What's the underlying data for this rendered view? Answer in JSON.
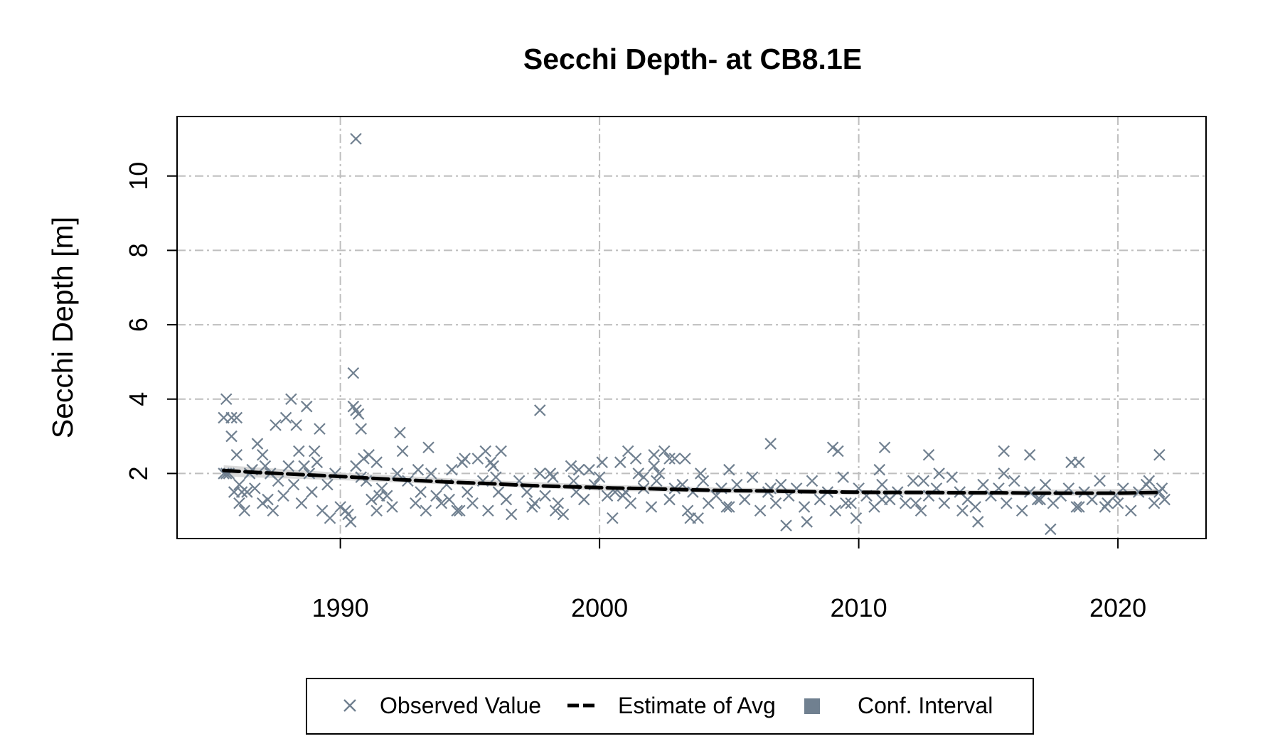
{
  "chart_data": {
    "type": "scatter",
    "title": "Secchi Depth- at CB8.1E",
    "xlabel": "",
    "ylabel": "Secchi Depth [m]",
    "xlim": [
      1983.7,
      2023.4
    ],
    "ylim": [
      0.25,
      11.6
    ],
    "x_ticks": [
      1990,
      2000,
      2010,
      2020
    ],
    "x_tick_labels": [
      "1990",
      "2000",
      "2010",
      "2020"
    ],
    "y_ticks": [
      2,
      4,
      6,
      8,
      10
    ],
    "y_tick_labels": [
      "2",
      "4",
      "6",
      "8",
      "10"
    ],
    "grid": true,
    "legend_position": "bottom",
    "colors": {
      "observed": "#708090",
      "estimate": "#000000",
      "conf_interval": "#708090",
      "band": "#d3d3d3",
      "grid": "#bebebe"
    },
    "legend": [
      {
        "label": "Observed Value",
        "marker": "x"
      },
      {
        "label": "Estimate of Avg",
        "marker": "dashed-line"
      },
      {
        "label": "Conf. Interval",
        "marker": "square"
      }
    ],
    "series": [
      {
        "name": "Observed Value",
        "kind": "points",
        "x": [
          1985.5,
          1985.7,
          1985.5,
          1985.8,
          1986.0,
          1986.2,
          1985.9,
          1986.1,
          1986.3,
          1985.6,
          1986.4,
          1986.6,
          1986.8,
          1987.0,
          1987.2,
          1986.7,
          1987.0,
          1987.4,
          1987.6,
          1987.8,
          1988.0,
          1987.9,
          1988.2,
          1988.3,
          1988.5,
          1988.6,
          1988.8,
          1988.9,
          1989.1,
          1989.3,
          1989.5,
          1989.6,
          1989.8,
          1990.0,
          1990.2,
          1990.4,
          1990.5,
          1990.6,
          1990.7,
          1990.8,
          1990.9,
          1991.0,
          1991.2,
          1991.4,
          1991.6,
          1991.8,
          1992.0,
          1992.2,
          1992.4,
          1992.6,
          1992.9,
          1993.1,
          1993.3,
          1993.5,
          1993.7,
          1993.9,
          1994.1,
          1994.3,
          1994.5,
          1994.7,
          1994.9,
          1995.1,
          1995.3,
          1995.5,
          1995.7,
          1995.9,
          1996.1,
          1996.4,
          1996.6,
          1996.9,
          1997.2,
          1997.4,
          1997.7,
          1997.9,
          1998.2,
          1998.4,
          1998.6,
          1998.9,
          1999.1,
          1999.4,
          1999.6,
          1999.8,
          2000.0,
          2000.3,
          2000.5,
          2000.8,
          2001.0,
          2001.2,
          2001.5,
          2001.7,
          2002.0,
          2002.2,
          2002.5,
          2002.7,
          2002.9,
          2003.2,
          2003.4,
          2003.6,
          2003.9,
          2004.2,
          2004.5,
          2004.7,
          2005.0,
          2005.3,
          2005.6,
          2005.9,
          2006.2,
          2006.5,
          2006.8,
          2007.0,
          2007.3,
          2007.6,
          2007.9,
          2008.2,
          2008.5,
          2008.8,
          2009.1,
          2009.4,
          2009.7,
          2010.0,
          2010.3,
          2010.6,
          2010.9,
          2011.2,
          2011.5,
          2011.8,
          2012.1,
          2012.4,
          2012.7,
          2013.0,
          2013.3,
          2013.6,
          2013.9,
          2014.2,
          2014.5,
          2014.8,
          2015.1,
          2015.4,
          2015.7,
          2016.0,
          2016.3,
          2016.6,
          2016.9,
          2017.2,
          2017.5,
          2017.8,
          2018.1,
          2018.4,
          2018.7,
          2019.0,
          2019.3,
          2019.6,
          2019.9,
          2020.2,
          2020.5,
          2020.8,
          2021.1,
          2021.4,
          2021.6,
          2021.8,
          1986.5,
          1987.5,
          1989.0,
          1990.3,
          1991.5,
          1993.0,
          1994.6,
          1996.0,
          1997.5,
          1999.0,
          2000.6,
          2002.1,
          2003.5,
          2004.9,
          2006.6,
          2008.0,
          2009.5,
          2010.9,
          2012.5,
          2014.0,
          2015.6,
          2017.0,
          2018.5,
          2020.0,
          2021.2,
          1985.6,
          1985.8,
          1986.0,
          1986.1,
          1987.3,
          1988.1,
          1988.4,
          1988.7,
          1989.2,
          1990.5,
          1990.6,
          1990.8,
          1991.1,
          1992.3,
          1993.4,
          1994.8,
          1995.6,
          1996.2,
          1997.7,
          1998.1,
          1999.2,
          2000.1,
          2001.1,
          2001.4,
          2001.7,
          2002.1,
          2002.3,
          2002.7,
          2002.9,
          2003.3,
          2004.0,
          2005.0,
          2006.6,
          2009.0,
          2009.2,
          2010.8,
          2011.0,
          2012.7,
          2013.1,
          2015.6,
          2016.6,
          2018.2,
          2018.5,
          2021.6,
          1990.6,
          1987.1,
          1991.4,
          1994.2,
          1995.8,
          1998.3,
          2000.9,
          2003.8,
          2007.2,
          2009.9,
          2012.2,
          2014.6,
          2017.4,
          2019.5,
          2021.7
        ],
        "y": [
          2.0,
          2.0,
          3.5,
          3.5,
          3.5,
          1.5,
          1.5,
          1.2,
          1.0,
          2.0,
          1.5,
          2.1,
          2.8,
          2.5,
          1.3,
          1.6,
          1.2,
          1.0,
          1.8,
          1.4,
          2.2,
          3.5,
          1.7,
          3.3,
          1.2,
          2.2,
          2.0,
          1.5,
          2.3,
          1.0,
          1.7,
          0.8,
          2.0,
          1.1,
          1.0,
          0.7,
          3.8,
          2.2,
          3.6,
          1.9,
          2.4,
          1.8,
          1.3,
          2.3,
          1.6,
          1.4,
          1.1,
          2.0,
          2.6,
          1.8,
          1.2,
          1.5,
          1.0,
          2.0,
          1.4,
          1.2,
          1.7,
          2.1,
          1.0,
          2.3,
          1.5,
          1.2,
          2.4,
          1.8,
          1.0,
          2.2,
          1.5,
          1.3,
          0.9,
          1.8,
          1.5,
          1.1,
          2.0,
          1.4,
          1.9,
          1.2,
          0.9,
          2.2,
          1.5,
          1.3,
          2.1,
          1.7,
          1.9,
          1.4,
          0.8,
          2.3,
          1.5,
          1.2,
          2.0,
          1.6,
          1.1,
          1.8,
          2.6,
          1.3,
          2.4,
          1.7,
          1.0,
          1.5,
          2.0,
          1.2,
          1.4,
          1.6,
          1.1,
          1.7,
          1.3,
          1.9,
          1.0,
          1.5,
          1.2,
          1.7,
          1.4,
          1.6,
          1.1,
          1.8,
          1.3,
          1.5,
          1.0,
          1.9,
          1.2,
          1.6,
          1.4,
          1.1,
          1.7,
          1.3,
          1.5,
          1.2,
          1.8,
          1.0,
          1.4,
          1.6,
          1.2,
          1.9,
          1.5,
          1.3,
          1.1,
          1.7,
          1.4,
          1.6,
          1.2,
          1.8,
          1.0,
          1.5,
          1.3,
          1.7,
          1.2,
          1.4,
          1.6,
          1.1,
          1.5,
          1.3,
          1.8,
          1.2,
          1.4,
          1.6,
          1.0,
          1.5,
          1.7,
          1.2,
          1.5,
          1.3,
          2.0,
          3.3,
          2.6,
          0.9,
          1.4,
          2.1,
          1.0,
          1.9,
          1.2,
          1.8,
          1.5,
          2.2,
          0.8,
          1.1,
          1.6,
          0.7,
          1.2,
          1.3,
          1.8,
          1.0,
          2.0,
          1.3,
          1.1,
          1.2,
          1.8,
          4.0,
          3.0,
          2.5,
          1.7,
          2.0,
          4.0,
          2.6,
          3.8,
          3.2,
          4.7,
          3.7,
          3.2,
          2.5,
          3.1,
          2.7,
          2.4,
          2.6,
          2.6,
          3.7,
          2.0,
          2.1,
          2.3,
          2.6,
          2.4,
          1.9,
          2.5,
          2.0,
          2.4,
          1.6,
          2.4,
          1.8,
          2.1,
          2.8,
          2.7,
          2.6,
          2.1,
          2.7,
          2.5,
          2.0,
          2.6,
          2.5,
          2.3,
          2.3,
          2.5,
          11.0,
          2.2,
          1.0,
          1.3,
          2.3,
          1.0,
          1.4,
          0.8,
          0.6,
          0.8,
          1.2,
          0.7,
          0.5,
          1.1,
          1.6
        ]
      },
      {
        "name": "Estimate of Avg",
        "kind": "line",
        "x": [
          1985.5,
          1987.0,
          1988.5,
          1990.0,
          1991.5,
          1993.0,
          1994.5,
          1996.0,
          1997.5,
          1999.0,
          2000.5,
          2002.0,
          2003.5,
          2005.0,
          2006.5,
          2008.0,
          2009.5,
          2011.0,
          2012.5,
          2014.0,
          2015.5,
          2017.0,
          2018.5,
          2020.0,
          2021.5
        ],
        "y": [
          2.08,
          2.02,
          1.97,
          1.92,
          1.86,
          1.81,
          1.76,
          1.72,
          1.67,
          1.64,
          1.61,
          1.59,
          1.56,
          1.54,
          1.53,
          1.51,
          1.5,
          1.49,
          1.49,
          1.48,
          1.48,
          1.47,
          1.47,
          1.47,
          1.49
        ]
      },
      {
        "name": "Conf. Interval",
        "kind": "band",
        "x": [
          1985.5,
          1990.0,
          1995.0,
          2000.0,
          2005.0,
          2010.0,
          2015.0,
          2021.5
        ],
        "lower": [
          1.92,
          1.82,
          1.68,
          1.54,
          1.47,
          1.43,
          1.41,
          1.4
        ],
        "upper": [
          2.22,
          2.02,
          1.84,
          1.7,
          1.62,
          1.56,
          1.55,
          1.59
        ]
      }
    ]
  }
}
